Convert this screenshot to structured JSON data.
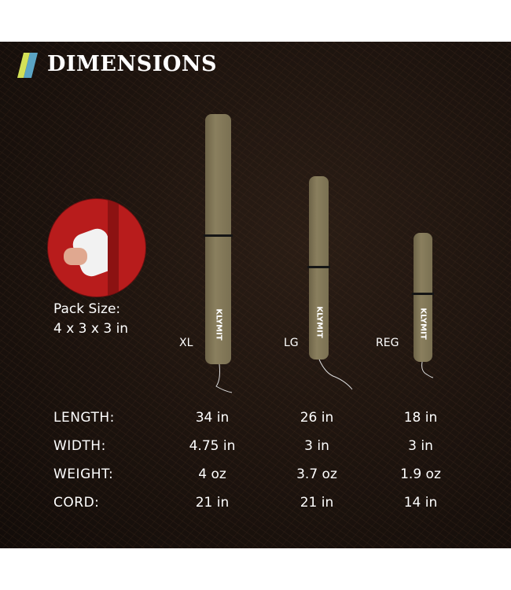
{
  "title": "DIMENSIONS",
  "colors": {
    "slash_green": "#d4e157",
    "slash_blue": "#5ba4c4",
    "pillow": "#7f7555"
  },
  "pack": {
    "label": "Pack Size:",
    "value": "4 x 3 x 3 in"
  },
  "brand": "KLYMIT",
  "sizes": [
    "XL",
    "LG",
    "REG"
  ],
  "rows": [
    {
      "label": "LENGTH:",
      "values": [
        "34 in",
        "26 in",
        "18 in"
      ]
    },
    {
      "label": "WIDTH:",
      "values": [
        "4.75 in",
        "3 in",
        "3 in"
      ]
    },
    {
      "label": "WEIGHT:",
      "values": [
        "4 oz",
        "3.7 oz",
        "1.9 oz"
      ]
    },
    {
      "label": "CORD:",
      "values": [
        "21 in",
        "21 in",
        "14 in"
      ]
    }
  ]
}
